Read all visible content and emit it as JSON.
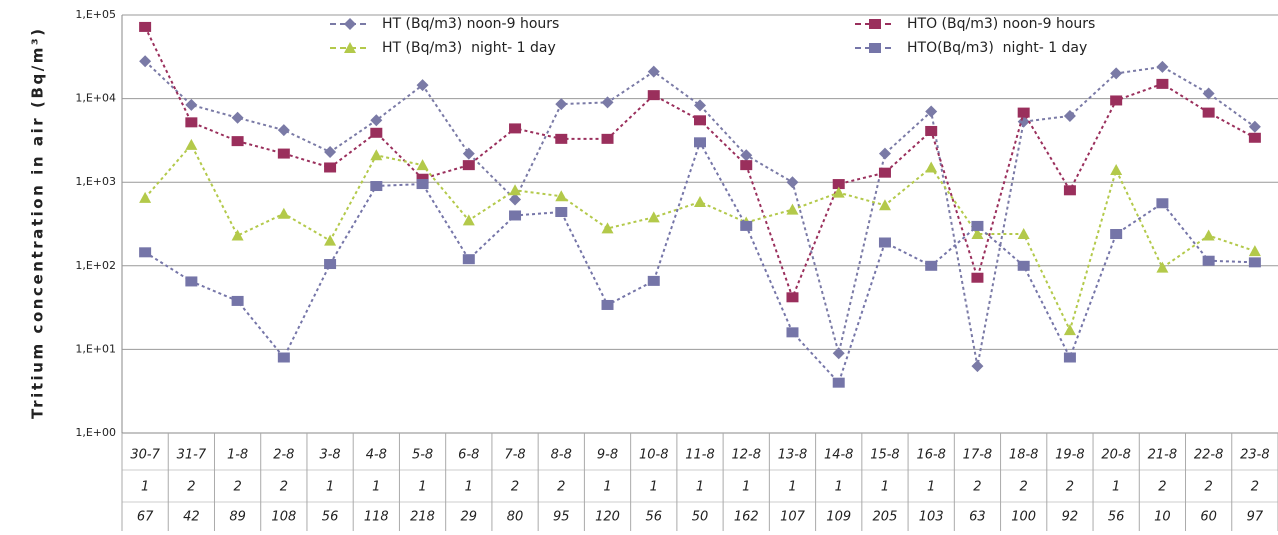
{
  "chart_data": {
    "type": "line",
    "y_label": "Tritium concentration in air (Bq/m³)",
    "log_scale": true,
    "grid": true,
    "legend_position": "top",
    "categories": [
      "30-7",
      "31-7",
      "1-8",
      "2-8",
      "3-8",
      "4-8",
      "5-8",
      "6-8",
      "7-8",
      "8-8",
      "9-8",
      "10-8",
      "11-8",
      "12-8",
      "13-8",
      "14-8",
      "15-8",
      "16-8",
      "17-8",
      "18-8",
      "19-8",
      "20-8",
      "21-8",
      "22-8",
      "23-8"
    ],
    "table_rows": [
      [
        1,
        2,
        2,
        2,
        1,
        1,
        1,
        1,
        2,
        2,
        1,
        1,
        1,
        1,
        1,
        1,
        1,
        1,
        2,
        2,
        2,
        1,
        2,
        2,
        2
      ],
      [
        67,
        42,
        89,
        108,
        56,
        118,
        218,
        29,
        80,
        95,
        120,
        56,
        50,
        162,
        107,
        109,
        205,
        103,
        63,
        100,
        92,
        56,
        10,
        60,
        97
      ]
    ],
    "ylim": [
      1,
      100000
    ],
    "yticks": [
      {
        "value": 1,
        "label": "1,E+00"
      },
      {
        "value": 10,
        "label": "1,E+01"
      },
      {
        "value": 100,
        "label": "1,E+02"
      },
      {
        "value": 1000,
        "label": "1,E+03"
      },
      {
        "value": 10000,
        "label": "1,E+04"
      },
      {
        "value": 100000,
        "label": "1,E+05"
      }
    ],
    "series": [
      {
        "name": "HT (Bq/m3) noon-9 hours",
        "color": "#7a7aa6",
        "marker": "diamond",
        "values": [
          28000,
          8400,
          5900,
          4200,
          2300,
          5500,
          14500,
          2200,
          620,
          8600,
          9000,
          21000,
          8300,
          2100,
          1000,
          9,
          2200,
          7000,
          6.3,
          5300,
          6200,
          20000,
          24000,
          11500,
          4600
        ]
      },
      {
        "name": "HTO (Bq/m3) noon-9 hours",
        "color": "#9a2f5c",
        "marker": "square",
        "values": [
          72000,
          5200,
          3100,
          2200,
          1500,
          3900,
          1100,
          1600,
          4400,
          3300,
          3300,
          11000,
          5500,
          1600,
          42,
          950,
          1300,
          4100,
          72,
          6800,
          800,
          9500,
          15000,
          6800,
          3400
        ]
      },
      {
        "name": "HT (Bq/m3)  night- 1 day",
        "color": "#b3c94a",
        "marker": "triangle",
        "values": [
          650,
          2800,
          230,
          420,
          200,
          2100,
          1600,
          350,
          800,
          680,
          280,
          380,
          580,
          330,
          470,
          750,
          530,
          1500,
          240,
          240,
          17,
          1400,
          95,
          230,
          150
        ]
      },
      {
        "name": "HTO(Bq/m3)  night- 1 day",
        "color": "#7575a8",
        "marker": "square",
        "values": [
          145,
          65,
          38,
          8,
          105,
          900,
          950,
          120,
          400,
          440,
          34,
          66,
          3000,
          300,
          16,
          4,
          190,
          100,
          300,
          100,
          8,
          240,
          560,
          115,
          110
        ]
      }
    ]
  }
}
